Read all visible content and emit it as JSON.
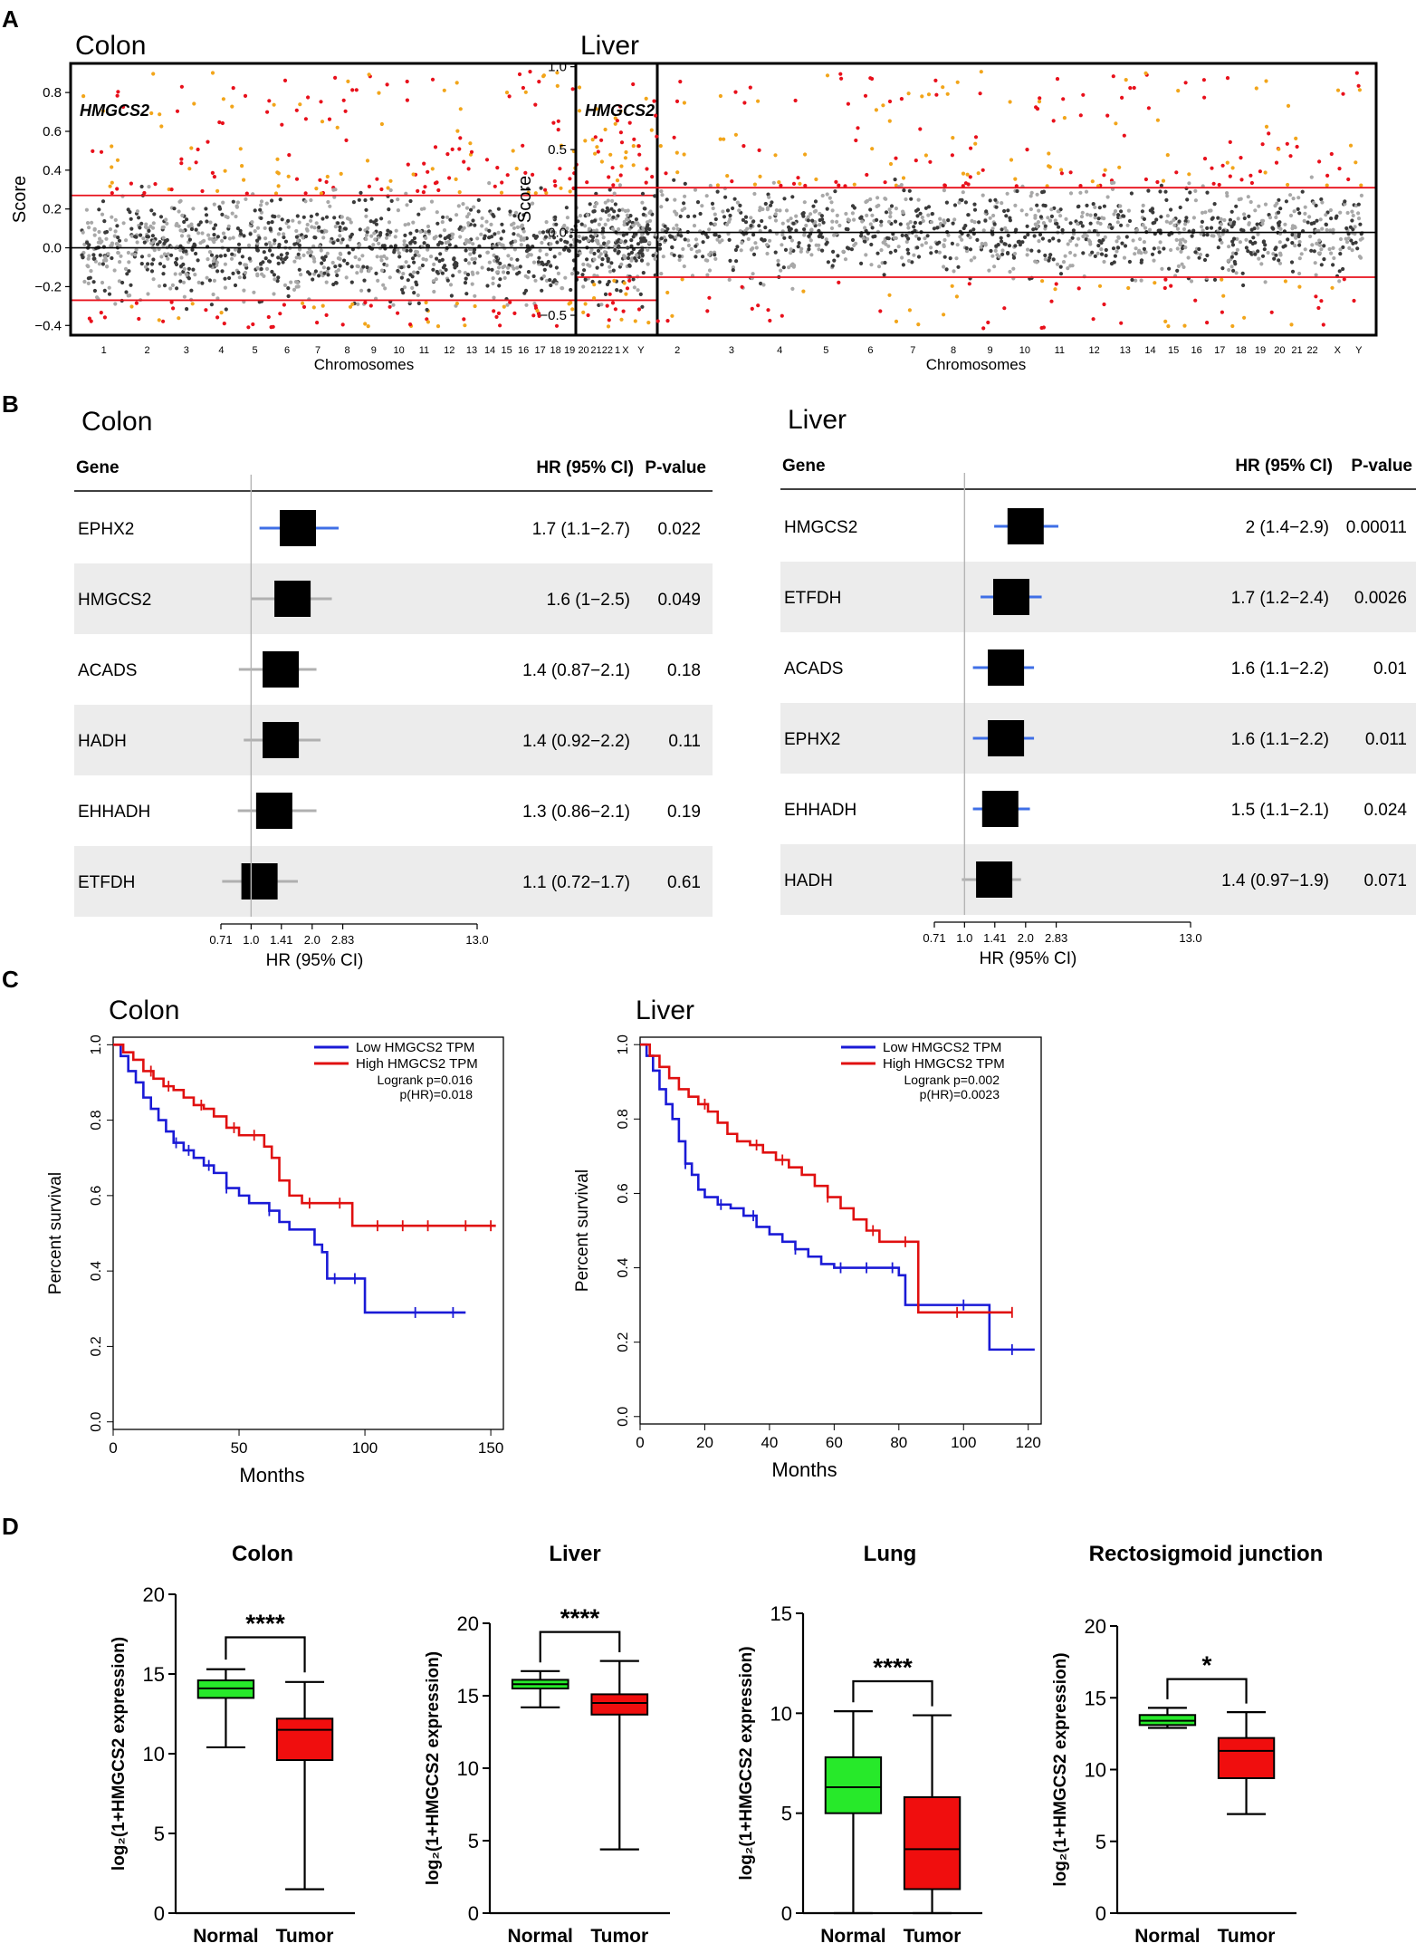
{
  "panel_labels": [
    "A",
    "B",
    "C",
    "D"
  ],
  "chart_data": [
    {
      "id": "A-colon",
      "type": "scatter",
      "title": "Colon",
      "gene_label": "HMGCS2",
      "xlabel": "Chromosomes",
      "ylabel": "Score",
      "ylim": [
        -0.45,
        0.95
      ],
      "yticks": [
        -0.4,
        -0.2,
        0.0,
        0.2,
        0.4,
        0.6,
        0.8
      ],
      "ytick_labels": [
        "−0.4",
        "−0.2",
        "0.0",
        "0.2",
        "0.4",
        "0.6",
        "0.8"
      ],
      "chromosomes": [
        "1",
        "2",
        "3",
        "4",
        "5",
        "6",
        "7",
        "8",
        "9",
        "10",
        "11",
        "12",
        "13",
        "14",
        "15",
        "16",
        "17",
        "18",
        "19",
        "20",
        "21",
        "22",
        "X",
        "Y"
      ],
      "thresholds": [
        0.27,
        -0.27
      ],
      "zero_line": 0,
      "colors": {
        "dark": "#3a3a3a",
        "light": "#a8a8a8",
        "red": "#e8101b",
        "orange": "#f2a51a",
        "threshold": "#e8101b"
      }
    },
    {
      "id": "A-liver",
      "type": "scatter",
      "title": "Liver",
      "gene_label": "HMGCS2",
      "xlabel": "Chromosomes",
      "ylabel": "Score",
      "ylim": [
        -0.62,
        1.02
      ],
      "yticks": [
        -0.5,
        0.0,
        0.5,
        1.0
      ],
      "ytick_labels": [
        "−0.5",
        "0.0",
        "0.5",
        "1.0"
      ],
      "chromosomes": [
        "1",
        "2",
        "3",
        "4",
        "5",
        "6",
        "7",
        "8",
        "9",
        "10",
        "11",
        "12",
        "13",
        "14",
        "15",
        "16",
        "17",
        "18",
        "19",
        "20",
        "21",
        "22",
        "X",
        "Y"
      ],
      "thresholds": [
        0.27,
        -0.27
      ],
      "zero_line": 0,
      "colors": {
        "dark": "#3a3a3a",
        "light": "#a8a8a8",
        "red": "#e8101b",
        "orange": "#f2a51a",
        "threshold": "#e8101b"
      }
    },
    {
      "id": "B-colon",
      "type": "forest",
      "title": "Colon",
      "header": {
        "gene": "Gene",
        "hr": "HR (95% CI)",
        "p": "P-value"
      },
      "xlabel": "HR (95% CI)",
      "xticks": [
        0.71,
        1.0,
        1.41,
        2.0,
        2.83,
        13.0
      ],
      "xtick_labels": [
        "0.71",
        "1.0",
        "1.41",
        "2.0",
        "2.83",
        "13.0"
      ],
      "rows": [
        {
          "gene": "EPHX2",
          "hr": 1.7,
          "lo": 1.1,
          "hi": 2.7,
          "hr_text": "1.7 (1.1−2.7)",
          "p": "0.022"
        },
        {
          "gene": "HMGCS2",
          "hr": 1.6,
          "lo": 1.0,
          "hi": 2.5,
          "hr_text": "1.6 (1−2.5)",
          "p": "0.049"
        },
        {
          "gene": "ACADS",
          "hr": 1.4,
          "lo": 0.87,
          "hi": 2.1,
          "hr_text": "1.4 (0.87−2.1)",
          "p": "0.18"
        },
        {
          "gene": "HADH",
          "hr": 1.4,
          "lo": 0.92,
          "hi": 2.2,
          "hr_text": "1.4 (0.92−2.2)",
          "p": "0.11"
        },
        {
          "gene": "EHHADH",
          "hr": 1.3,
          "lo": 0.86,
          "hi": 2.1,
          "hr_text": "1.3 (0.86−2.1)",
          "p": "0.19"
        },
        {
          "gene": "ETFDH",
          "hr": 1.1,
          "lo": 0.72,
          "hi": 1.7,
          "hr_text": "1.1 (0.72−1.7)",
          "p": "0.61"
        }
      ]
    },
    {
      "id": "B-liver",
      "type": "forest",
      "title": "Liver",
      "header": {
        "gene": "Gene",
        "hr": "HR (95% CI)",
        "p": "P-value"
      },
      "xlabel": "HR (95% CI)",
      "xticks": [
        0.71,
        1.0,
        1.41,
        2.0,
        2.83,
        13.0
      ],
      "xtick_labels": [
        "0.71",
        "1.0",
        "1.41",
        "2.0",
        "2.83",
        "13.0"
      ],
      "rows": [
        {
          "gene": "HMGCS2",
          "hr": 2.0,
          "lo": 1.4,
          "hi": 2.9,
          "hr_text": "2 (1.4−2.9)",
          "p": "0.00011"
        },
        {
          "gene": "ETFDH",
          "hr": 1.7,
          "lo": 1.2,
          "hi": 2.4,
          "hr_text": "1.7 (1.2−2.4)",
          "p": "0.0026"
        },
        {
          "gene": "ACADS",
          "hr": 1.6,
          "lo": 1.1,
          "hi": 2.2,
          "hr_text": "1.6 (1.1−2.2)",
          "p": "0.01"
        },
        {
          "gene": "EPHX2",
          "hr": 1.6,
          "lo": 1.1,
          "hi": 2.2,
          "hr_text": "1.6 (1.1−2.2)",
          "p": "0.011"
        },
        {
          "gene": "EHHADH",
          "hr": 1.5,
          "lo": 1.1,
          "hi": 2.1,
          "hr_text": "1.5 (1.1−2.1)",
          "p": "0.024"
        },
        {
          "gene": "HADH",
          "hr": 1.4,
          "lo": 0.97,
          "hi": 1.9,
          "hr_text": "1.4 (0.97−1.9)",
          "p": "0.071"
        }
      ]
    },
    {
      "id": "C-colon",
      "type": "line",
      "subtype": "kaplan-meier",
      "title": "Colon",
      "xlabel": "Months",
      "ylabel": "Percent survival",
      "xlim": [
        0,
        155
      ],
      "ylim": [
        -0.02,
        1.02
      ],
      "xticks": [
        0,
        50,
        100,
        150
      ],
      "yticks": [
        0.0,
        0.2,
        0.4,
        0.6,
        0.8,
        1.0
      ],
      "ytick_labels": [
        "0.0",
        "0.2",
        "0.4",
        "0.6",
        "0.8",
        "1.0"
      ],
      "legend": {
        "low": "Low HMGCS2 TPM",
        "high": "High HMGCS2 TPM",
        "logrank": "Logrank p=0.016",
        "phr": "p(HR)=0.018"
      },
      "series": [
        {
          "name": "Low HMGCS2 TPM",
          "color": "#1a1ad6",
          "x": [
            0,
            3,
            6,
            9,
            12,
            15,
            18,
            21,
            24,
            28,
            32,
            36,
            40,
            45,
            50,
            54,
            58,
            62,
            66,
            70,
            75,
            80,
            83,
            85,
            90,
            95,
            100,
            105,
            110,
            120,
            130,
            140
          ],
          "y": [
            1.0,
            0.97,
            0.93,
            0.9,
            0.86,
            0.83,
            0.8,
            0.77,
            0.74,
            0.72,
            0.7,
            0.68,
            0.66,
            0.62,
            0.6,
            0.58,
            0.58,
            0.56,
            0.53,
            0.51,
            0.51,
            0.47,
            0.45,
            0.38,
            0.38,
            0.38,
            0.29,
            0.29,
            0.29,
            0.29,
            0.29,
            0.29
          ],
          "censor_x": [
            25,
            30,
            38,
            45,
            62,
            88,
            96,
            120,
            135
          ]
        },
        {
          "name": "High HMGCS2 TPM",
          "color": "#e01010",
          "x": [
            0,
            4,
            8,
            12,
            16,
            20,
            24,
            28,
            32,
            36,
            40,
            45,
            50,
            55,
            60,
            63,
            66,
            70,
            75,
            80,
            85,
            90,
            95,
            100,
            110,
            120,
            130,
            140,
            152
          ],
          "y": [
            1.0,
            0.98,
            0.96,
            0.93,
            0.91,
            0.89,
            0.88,
            0.86,
            0.84,
            0.83,
            0.81,
            0.78,
            0.76,
            0.76,
            0.73,
            0.7,
            0.64,
            0.6,
            0.58,
            0.58,
            0.58,
            0.58,
            0.52,
            0.52,
            0.52,
            0.52,
            0.52,
            0.52,
            0.52
          ],
          "censor_x": [
            15,
            22,
            35,
            48,
            56,
            78,
            90,
            105,
            115,
            125,
            140,
            150
          ]
        }
      ]
    },
    {
      "id": "C-liver",
      "type": "line",
      "subtype": "kaplan-meier",
      "title": "Liver",
      "xlabel": "Months",
      "ylabel": "Percent survival",
      "xlim": [
        0,
        124
      ],
      "ylim": [
        -0.02,
        1.02
      ],
      "xticks": [
        0,
        20,
        40,
        60,
        80,
        100,
        120
      ],
      "yticks": [
        0.0,
        0.2,
        0.4,
        0.6,
        0.8,
        1.0
      ],
      "ytick_labels": [
        "0.0",
        "0.2",
        "0.4",
        "0.6",
        "0.8",
        "1.0"
      ],
      "legend": {
        "low": "Low HMGCS2 TPM",
        "high": "High HMGCS2 TPM",
        "logrank": "Logrank p=0.002",
        "phr": "p(HR)=0.0023"
      },
      "series": [
        {
          "name": "Low HMGCS2 TPM",
          "color": "#1a1ad6",
          "x": [
            0,
            2,
            4,
            6,
            8,
            10,
            12,
            14,
            16,
            18,
            20,
            24,
            28,
            32,
            36,
            40,
            44,
            48,
            52,
            56,
            60,
            70,
            80,
            82,
            85,
            95,
            105,
            108,
            112,
            122
          ],
          "y": [
            1.0,
            0.97,
            0.93,
            0.88,
            0.84,
            0.8,
            0.74,
            0.68,
            0.65,
            0.61,
            0.59,
            0.57,
            0.56,
            0.54,
            0.51,
            0.49,
            0.47,
            0.45,
            0.43,
            0.41,
            0.4,
            0.4,
            0.38,
            0.3,
            0.3,
            0.3,
            0.3,
            0.18,
            0.18,
            0.18
          ],
          "censor_x": [
            14,
            25,
            35,
            48,
            62,
            70,
            78,
            100,
            115
          ]
        },
        {
          "name": "High HMGCS2 TPM",
          "color": "#e01010",
          "x": [
            0,
            3,
            6,
            9,
            12,
            15,
            18,
            21,
            24,
            27,
            30,
            34,
            38,
            42,
            46,
            50,
            54,
            58,
            62,
            66,
            70,
            74,
            78,
            84,
            86,
            90,
            100,
            110,
            115
          ],
          "y": [
            1.0,
            0.97,
            0.94,
            0.91,
            0.88,
            0.86,
            0.84,
            0.82,
            0.79,
            0.76,
            0.74,
            0.73,
            0.71,
            0.69,
            0.67,
            0.65,
            0.62,
            0.59,
            0.56,
            0.53,
            0.5,
            0.47,
            0.47,
            0.47,
            0.28,
            0.28,
            0.28,
            0.28,
            0.28
          ],
          "censor_x": [
            20,
            36,
            44,
            58,
            72,
            82,
            98,
            115
          ]
        }
      ]
    },
    {
      "id": "D-colon",
      "type": "box",
      "title": "Colon",
      "categories": [
        "Normal",
        "Tumor"
      ],
      "ylabel": "log₂(1+HMGCS2 expression)",
      "ylim": [
        0,
        20
      ],
      "yticks": [
        0,
        5,
        10,
        15,
        20
      ],
      "series": [
        {
          "name": "Normal",
          "color": "#27e92a",
          "min": 10.4,
          "q1": 13.5,
          "median": 14.1,
          "q3": 14.6,
          "max": 15.3
        },
        {
          "name": "Tumor",
          "color": "#f00e0e",
          "min": 1.5,
          "q1": 9.6,
          "median": 11.5,
          "q3": 12.2,
          "max": 14.5
        }
      ],
      "significance": "****"
    },
    {
      "id": "D-liver",
      "type": "box",
      "title": "Liver",
      "categories": [
        "Normal",
        "Tumor"
      ],
      "ylabel": "log₂(1+HMGCS2 expression)",
      "ylim": [
        0,
        20
      ],
      "yticks": [
        0,
        5,
        10,
        15,
        20
      ],
      "series": [
        {
          "name": "Normal",
          "color": "#27e92a",
          "min": 14.2,
          "q1": 15.5,
          "median": 15.8,
          "q3": 16.1,
          "max": 16.7
        },
        {
          "name": "Tumor",
          "color": "#f00e0e",
          "min": 4.4,
          "q1": 13.7,
          "median": 14.5,
          "q3": 15.1,
          "max": 17.4
        }
      ],
      "significance": "****"
    },
    {
      "id": "D-lung",
      "type": "box",
      "title": "Lung",
      "categories": [
        "Normal",
        "Tumor"
      ],
      "ylabel": "log₂(1+HMGCS2 expression)",
      "ylim": [
        0,
        15
      ],
      "yticks": [
        0,
        5,
        10,
        15
      ],
      "series": [
        {
          "name": "Normal",
          "color": "#27e92a",
          "min": 0,
          "q1": 5.0,
          "median": 6.3,
          "q3": 7.8,
          "max": 10.1
        },
        {
          "name": "Tumor",
          "color": "#f00e0e",
          "min": 0,
          "q1": 1.2,
          "median": 3.2,
          "q3": 5.8,
          "max": 9.9
        }
      ],
      "significance": "****"
    },
    {
      "id": "D-recto",
      "type": "box",
      "title": "Rectosigmoid junction",
      "categories": [
        "Normal",
        "Tumor"
      ],
      "ylabel": "log₂(1+HMGCS2 expression)",
      "ylim": [
        0,
        20
      ],
      "yticks": [
        0,
        5,
        10,
        15,
        20
      ],
      "series": [
        {
          "name": "Normal",
          "color": "#27e92a",
          "min": 12.9,
          "q1": 13.1,
          "median": 13.4,
          "q3": 13.8,
          "max": 14.3
        },
        {
          "name": "Tumor",
          "color": "#f00e0e",
          "min": 6.9,
          "q1": 9.4,
          "median": 11.3,
          "q3": 12.2,
          "max": 14.0
        }
      ],
      "significance": "*"
    }
  ]
}
